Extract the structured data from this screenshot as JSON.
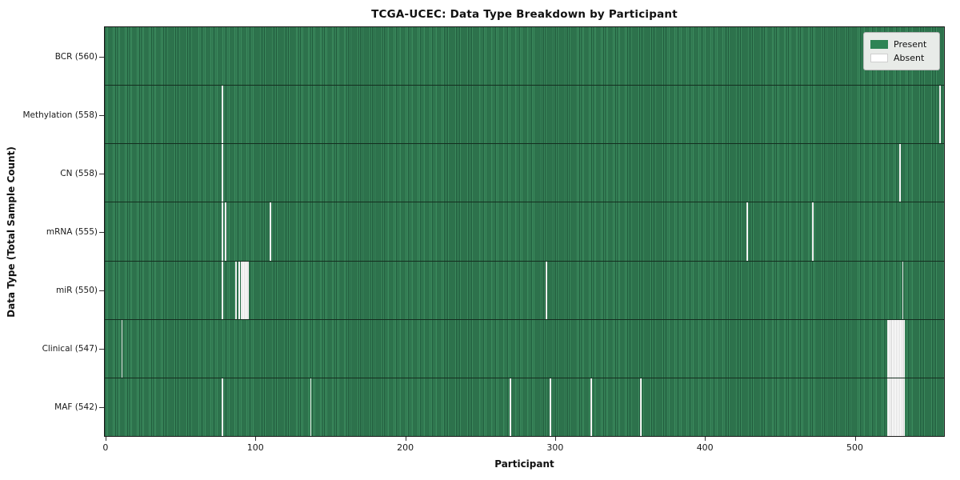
{
  "title": "TCGA-UCEC: Data Type Breakdown by Participant",
  "x_axis_label": "Participant",
  "y_axis_label": "Data Type (Total Sample Count)",
  "legend": {
    "present_label": "Present",
    "absent_label": "Absent"
  },
  "colors": {
    "present_fill": "#2e8455",
    "present_stripe_light": "#3c8c5e",
    "present_stripe_dark": "#1e573a",
    "absent_fill": "#ffffff",
    "row_divider": "#142e1f",
    "spine": "#1a1a1a",
    "legend_background": "#e8ebe8"
  },
  "chart_data": {
    "type": "heatmap",
    "title": "TCGA-UCEC: Data Type Breakdown by Participant",
    "xlabel": "Participant",
    "ylabel": "Data Type (Total Sample Count)",
    "legend_entries": [
      "Present",
      "Absent"
    ],
    "legend_position": "upper right",
    "grid": false,
    "n_participants": 560,
    "x_ticks": [
      0,
      100,
      200,
      300,
      400,
      500
    ],
    "x_range": [
      -0.5,
      559.5
    ],
    "cell_values": "1 = present (green), 0 = absent (white)",
    "rows": [
      {
        "name": "BCR",
        "label": "BCR (560)",
        "present_count": 560,
        "absent_participants": []
      },
      {
        "name": "Methylation",
        "label": "Methylation (558)",
        "present_count": 558,
        "absent_participants": [
          78,
          557
        ]
      },
      {
        "name": "CN",
        "label": "CN (558)",
        "present_count": 558,
        "absent_participants": [
          78,
          530
        ]
      },
      {
        "name": "mRNA",
        "label": "mRNA (555)",
        "present_count": 555,
        "absent_participants": [
          78,
          80,
          110,
          428,
          472
        ]
      },
      {
        "name": "miR",
        "label": "miR (550)",
        "present_count": 550,
        "absent_participants": [
          78,
          87,
          89,
          91,
          92,
          93,
          94,
          95,
          294,
          532
        ]
      },
      {
        "name": "Clinical",
        "label": "Clinical (547)",
        "present_count": 547,
        "absent_participants": [
          11,
          522,
          523,
          524,
          525,
          526,
          527,
          528,
          529,
          530,
          531,
          532,
          533
        ]
      },
      {
        "name": "MAF",
        "label": "MAF (542)",
        "present_count": 542,
        "absent_participants": [
          78,
          137,
          270,
          297,
          324,
          357,
          522,
          523,
          524,
          525,
          526,
          527,
          528,
          529,
          530,
          531,
          532,
          533
        ]
      }
    ]
  }
}
